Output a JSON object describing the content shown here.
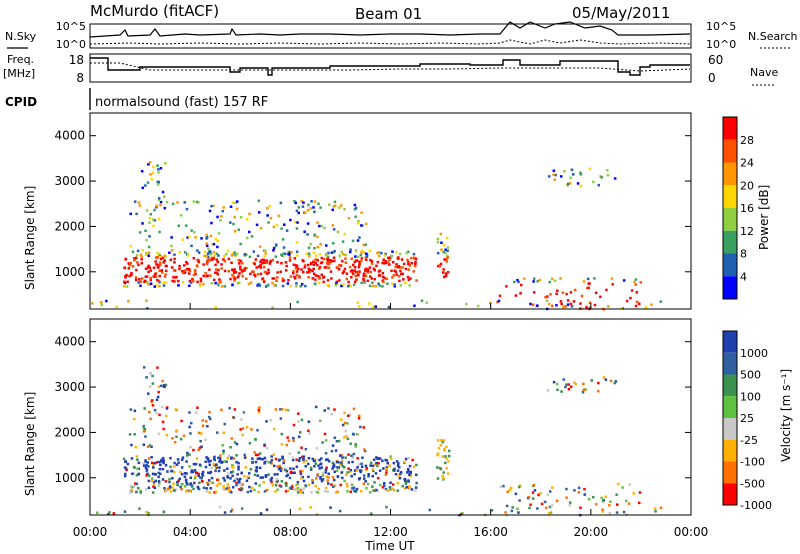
{
  "header": {
    "station": "McMurdo (fitACF)",
    "beam": "Beam 01",
    "date": "05/May/2011"
  },
  "panel_labels": {
    "nsky": "N.Sky",
    "nsearch": "N.Search",
    "freq": "Freq.",
    "freq_unit": "[MHz]",
    "nave": "Nave",
    "cpid": "CPID",
    "cpid_value": "normalsound (fast) 157 RF"
  },
  "axis_labels": {
    "slant_range": "Slant Range [km]",
    "time": "Time UT",
    "power": "Power [dB]",
    "velocity": "Velocity [m s⁻¹]"
  },
  "chart_data": [
    {
      "type": "line",
      "name": "noise",
      "series": [
        {
          "name": "N.Sky"
        },
        {
          "name": "N.Search"
        }
      ],
      "yticks_left": [
        "10^5",
        "10^0"
      ],
      "yticks_right": [
        "10^5",
        "10^0"
      ]
    },
    {
      "type": "line",
      "name": "frequency-nave",
      "series": [
        {
          "name": "Freq."
        },
        {
          "name": "Nave"
        }
      ],
      "yticks_left": [
        "18",
        "8"
      ],
      "yticks_right": [
        "60",
        "0"
      ]
    },
    {
      "type": "heatmap",
      "name": "power",
      "x_range_hours": [
        0,
        24
      ],
      "ylim": [
        180,
        4500
      ],
      "yticks": [
        "1000",
        "2000",
        "3000",
        "4000"
      ],
      "colorbar_ticks": [
        "28",
        "24",
        "20",
        "16",
        "12",
        "8",
        "4"
      ],
      "colors": [
        "#ff0000",
        "#ff5000",
        "#ff9600",
        "#ffd700",
        "#90d040",
        "#3aa060",
        "#2060b0",
        "#0000ff"
      ]
    },
    {
      "type": "heatmap",
      "name": "velocity",
      "x_range_hours": [
        0,
        24
      ],
      "ylim": [
        180,
        4500
      ],
      "yticks": [
        "1000",
        "2000",
        "3000",
        "4000"
      ],
      "colorbar_ticks": [
        "1000",
        "500",
        "100",
        "25",
        "-25",
        "-100",
        "-500",
        "-1000"
      ],
      "colors": [
        "#2040b0",
        "#3060a0",
        "#3c9050",
        "#60c040",
        "#c8c8c8",
        "#ffb000",
        "#ff7000",
        "#ff0000"
      ],
      "xticks": [
        "00:00",
        "04:00",
        "08:00",
        "12:00",
        "16:00",
        "20:00",
        "00:00"
      ]
    }
  ]
}
